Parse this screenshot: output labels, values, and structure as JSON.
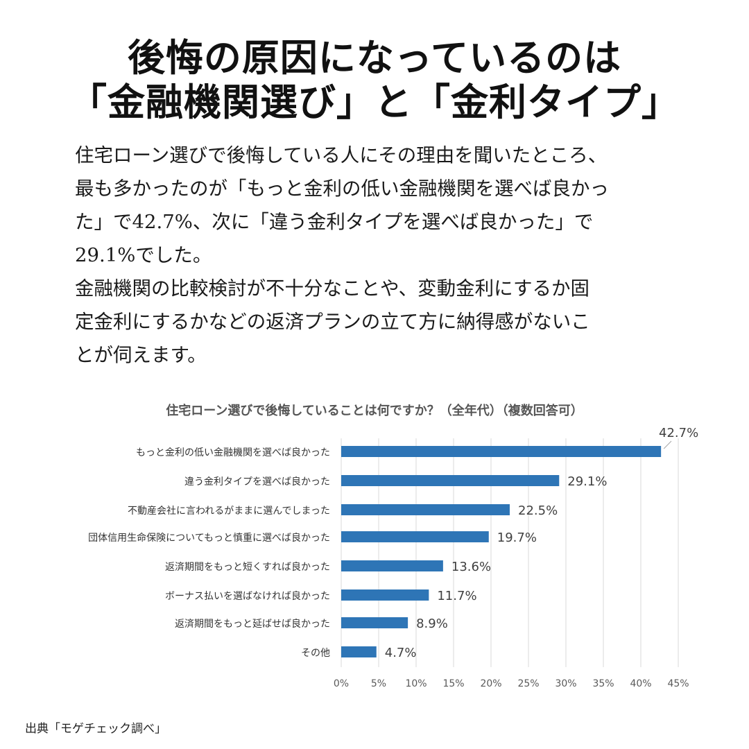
{
  "headline": {
    "line1": "後悔の原因になっているのは",
    "line2": "「金融機関選び」と「金利タイプ」"
  },
  "body": {
    "lines": [
      "住宅ローン選びで後悔している人にその理由を聞いたところ、",
      "最も多かったのが「もっと金利の低い金融機関を選べば良かっ",
      "た」で42.7%、次に「違う金利タイプを選べば良かった」で",
      "29.1%でした。",
      "金融機関の比較検討が不十分なことや、変動金利にするか固",
      "定金利にするかなどの返済プランの立て方に納得感がないこ",
      "とが伺えます。"
    ]
  },
  "chart_data": {
    "type": "bar",
    "orientation": "horizontal",
    "title": "住宅ローン選びで後悔していることは何ですか？（全年代）（複数回答可）",
    "categories": [
      "もっと金利の低い金融機関を選べば良かった",
      "違う金利タイプを選べば良かった",
      "不動産会社に言われるがままに選んでしまった",
      "団体信用生命保険についてもっと慎重に選べば良かった",
      "返済期間をもっと短くすれば良かった",
      "ボーナス払いを選ばなければ良かった",
      "返済期間をもっと延ばせば良かった",
      "その他"
    ],
    "values": [
      42.7,
      29.1,
      22.5,
      19.7,
      13.6,
      11.7,
      8.9,
      4.7
    ],
    "value_labels": [
      "42.7%",
      "29.1%",
      "22.5%",
      "19.7%",
      "13.6%",
      "11.7%",
      "8.9%",
      "4.7%"
    ],
    "x_ticks": [
      "0%",
      "5%",
      "10%",
      "15%",
      "20%",
      "25%",
      "30%",
      "35%",
      "40%",
      "45%"
    ],
    "xlim": [
      0,
      45
    ],
    "grid": true,
    "bar_color": "#2e75b6",
    "grid_color": "#d9d9d9"
  },
  "source": "出典「モゲチェック調べ」"
}
